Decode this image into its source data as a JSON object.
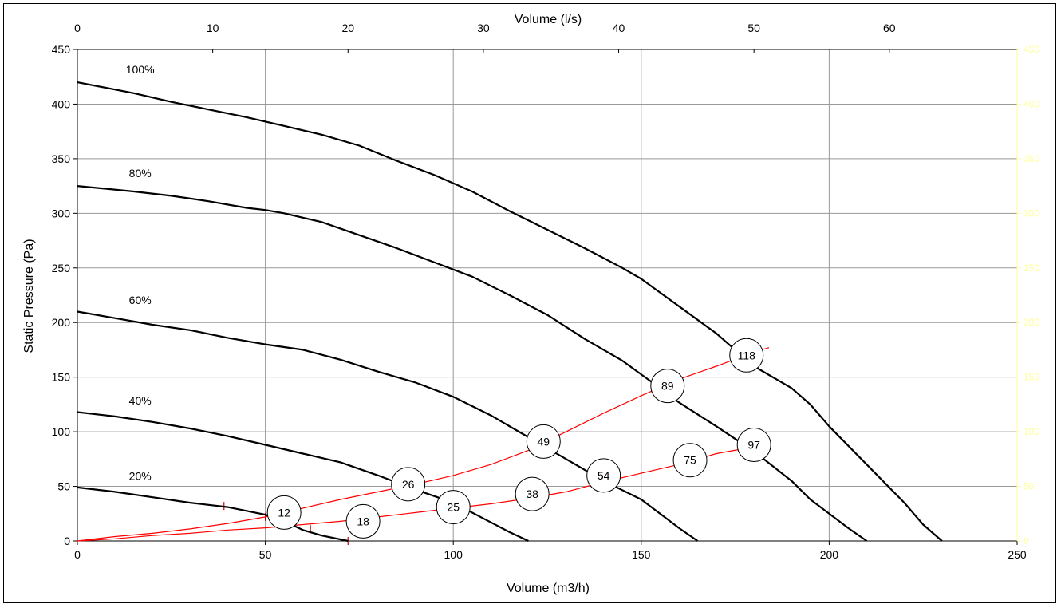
{
  "chart_data": {
    "type": "line",
    "xlabel": "Volume (m3/h)",
    "x2label": "Volume (l/s)",
    "ylabel": "Static Pressure (Pa)",
    "xlim": [
      0,
      250
    ],
    "x2lim": [
      0,
      69.444
    ],
    "ylim": [
      0,
      450
    ],
    "x_ticks": [
      0,
      50,
      100,
      150,
      200,
      250
    ],
    "x2_ticks": [
      0,
      10,
      20,
      30,
      40,
      50,
      60
    ],
    "y_ticks": [
      0,
      50,
      100,
      150,
      200,
      250,
      300,
      350,
      400,
      450
    ],
    "y2_ticks": [
      0,
      50,
      100,
      150,
      200,
      250,
      300,
      350,
      400,
      450
    ],
    "grid": true,
    "colors": {
      "fan_curve": "#000000",
      "system_curve": "#ff0000",
      "grid": "#999999",
      "right_axis_text": "#ffff99"
    },
    "series": [
      {
        "name": "100%",
        "label_at": [
          15,
          428
        ],
        "points": [
          [
            0,
            420
          ],
          [
            15,
            410
          ],
          [
            25,
            402
          ],
          [
            35,
            395
          ],
          [
            45,
            388
          ],
          [
            55,
            380
          ],
          [
            65,
            372
          ],
          [
            75,
            362
          ],
          [
            85,
            348
          ],
          [
            95,
            335
          ],
          [
            105,
            320
          ],
          [
            115,
            302
          ],
          [
            125,
            285
          ],
          [
            135,
            268
          ],
          [
            145,
            250
          ],
          [
            150,
            240
          ],
          [
            160,
            215
          ],
          [
            170,
            190
          ],
          [
            180,
            160
          ],
          [
            190,
            140
          ],
          [
            195,
            125
          ],
          [
            200,
            105
          ],
          [
            210,
            70
          ],
          [
            220,
            35
          ],
          [
            225,
            15
          ],
          [
            230,
            0
          ]
        ]
      },
      {
        "name": "80%",
        "label_at": [
          15,
          333
        ],
        "points": [
          [
            0,
            325
          ],
          [
            15,
            320
          ],
          [
            25,
            316
          ],
          [
            35,
            311
          ],
          [
            45,
            305
          ],
          [
            50,
            303
          ],
          [
            55,
            300
          ],
          [
            65,
            292
          ],
          [
            75,
            280
          ],
          [
            85,
            268
          ],
          [
            95,
            255
          ],
          [
            105,
            242
          ],
          [
            115,
            225
          ],
          [
            125,
            207
          ],
          [
            135,
            185
          ],
          [
            145,
            165
          ],
          [
            155,
            140
          ],
          [
            160,
            127
          ],
          [
            170,
            105
          ],
          [
            180,
            82
          ],
          [
            190,
            55
          ],
          [
            195,
            38
          ],
          [
            200,
            25
          ],
          [
            205,
            12
          ],
          [
            210,
            0
          ]
        ]
      },
      {
        "name": "60%",
        "label_at": [
          15,
          217
        ],
        "points": [
          [
            0,
            210
          ],
          [
            10,
            204
          ],
          [
            20,
            198
          ],
          [
            30,
            193
          ],
          [
            40,
            186
          ],
          [
            50,
            180
          ],
          [
            60,
            175
          ],
          [
            70,
            166
          ],
          [
            80,
            155
          ],
          [
            90,
            145
          ],
          [
            100,
            132
          ],
          [
            110,
            115
          ],
          [
            120,
            95
          ],
          [
            130,
            75
          ],
          [
            140,
            55
          ],
          [
            150,
            38
          ],
          [
            155,
            25
          ],
          [
            160,
            12
          ],
          [
            165,
            0
          ]
        ]
      },
      {
        "name": "40%",
        "label_at": [
          15,
          125
        ],
        "points": [
          [
            0,
            118
          ],
          [
            10,
            114
          ],
          [
            20,
            109
          ],
          [
            30,
            103
          ],
          [
            40,
            96
          ],
          [
            50,
            88
          ],
          [
            60,
            80
          ],
          [
            70,
            72
          ],
          [
            80,
            60
          ],
          [
            90,
            47
          ],
          [
            100,
            35
          ],
          [
            110,
            17
          ],
          [
            115,
            8
          ],
          [
            120,
            0
          ]
        ]
      },
      {
        "name": "20%",
        "label_at": [
          15,
          56
        ],
        "points": [
          [
            0,
            49
          ],
          [
            10,
            45
          ],
          [
            20,
            40
          ],
          [
            30,
            35
          ],
          [
            40,
            31
          ],
          [
            50,
            24
          ],
          [
            55,
            18
          ],
          [
            60,
            10
          ],
          [
            65,
            5
          ],
          [
            72,
            0
          ]
        ]
      }
    ],
    "system_curves": [
      {
        "name": "",
        "points": [
          [
            0,
            0
          ],
          [
            10,
            2
          ],
          [
            20,
            5
          ],
          [
            30,
            7
          ],
          [
            40,
            10
          ],
          [
            50,
            12
          ],
          [
            60,
            15
          ],
          [
            70,
            18
          ],
          [
            80,
            22
          ],
          [
            90,
            26
          ],
          [
            100,
            30
          ],
          [
            110,
            34
          ],
          [
            120,
            39
          ],
          [
            130,
            45
          ],
          [
            140,
            54
          ],
          [
            150,
            62
          ],
          [
            160,
            70
          ],
          [
            170,
            80
          ],
          [
            183,
            88
          ]
        ]
      },
      {
        "name": "",
        "points": [
          [
            0,
            0
          ],
          [
            10,
            4
          ],
          [
            20,
            7
          ],
          [
            30,
            11
          ],
          [
            40,
            16
          ],
          [
            50,
            22
          ],
          [
            60,
            30
          ],
          [
            70,
            38
          ],
          [
            80,
            45
          ],
          [
            90,
            52
          ],
          [
            100,
            60
          ],
          [
            110,
            70
          ],
          [
            120,
            83
          ],
          [
            130,
            100
          ],
          [
            140,
            117
          ],
          [
            150,
            133
          ],
          [
            160,
            148
          ],
          [
            170,
            160
          ],
          [
            180,
            173
          ],
          [
            184,
            177
          ]
        ]
      }
    ],
    "system_tick_marks": [
      [
        39,
        32
      ],
      [
        50,
        22
      ],
      [
        62,
        11
      ],
      [
        72,
        0
      ]
    ],
    "annotations": [
      {
        "label": "12",
        "x": 55,
        "y": 26
      },
      {
        "label": "18",
        "x": 76,
        "y": 18
      },
      {
        "label": "26",
        "x": 88,
        "y": 52
      },
      {
        "label": "25",
        "x": 100,
        "y": 31
      },
      {
        "label": "38",
        "x": 121,
        "y": 43
      },
      {
        "label": "49",
        "x": 124,
        "y": 91
      },
      {
        "label": "54",
        "x": 140,
        "y": 60
      },
      {
        "label": "75",
        "x": 163,
        "y": 74
      },
      {
        "label": "89",
        "x": 157,
        "y": 142
      },
      {
        "label": "97",
        "x": 180,
        "y": 88
      },
      {
        "label": "118",
        "x": 178,
        "y": 170
      }
    ]
  }
}
